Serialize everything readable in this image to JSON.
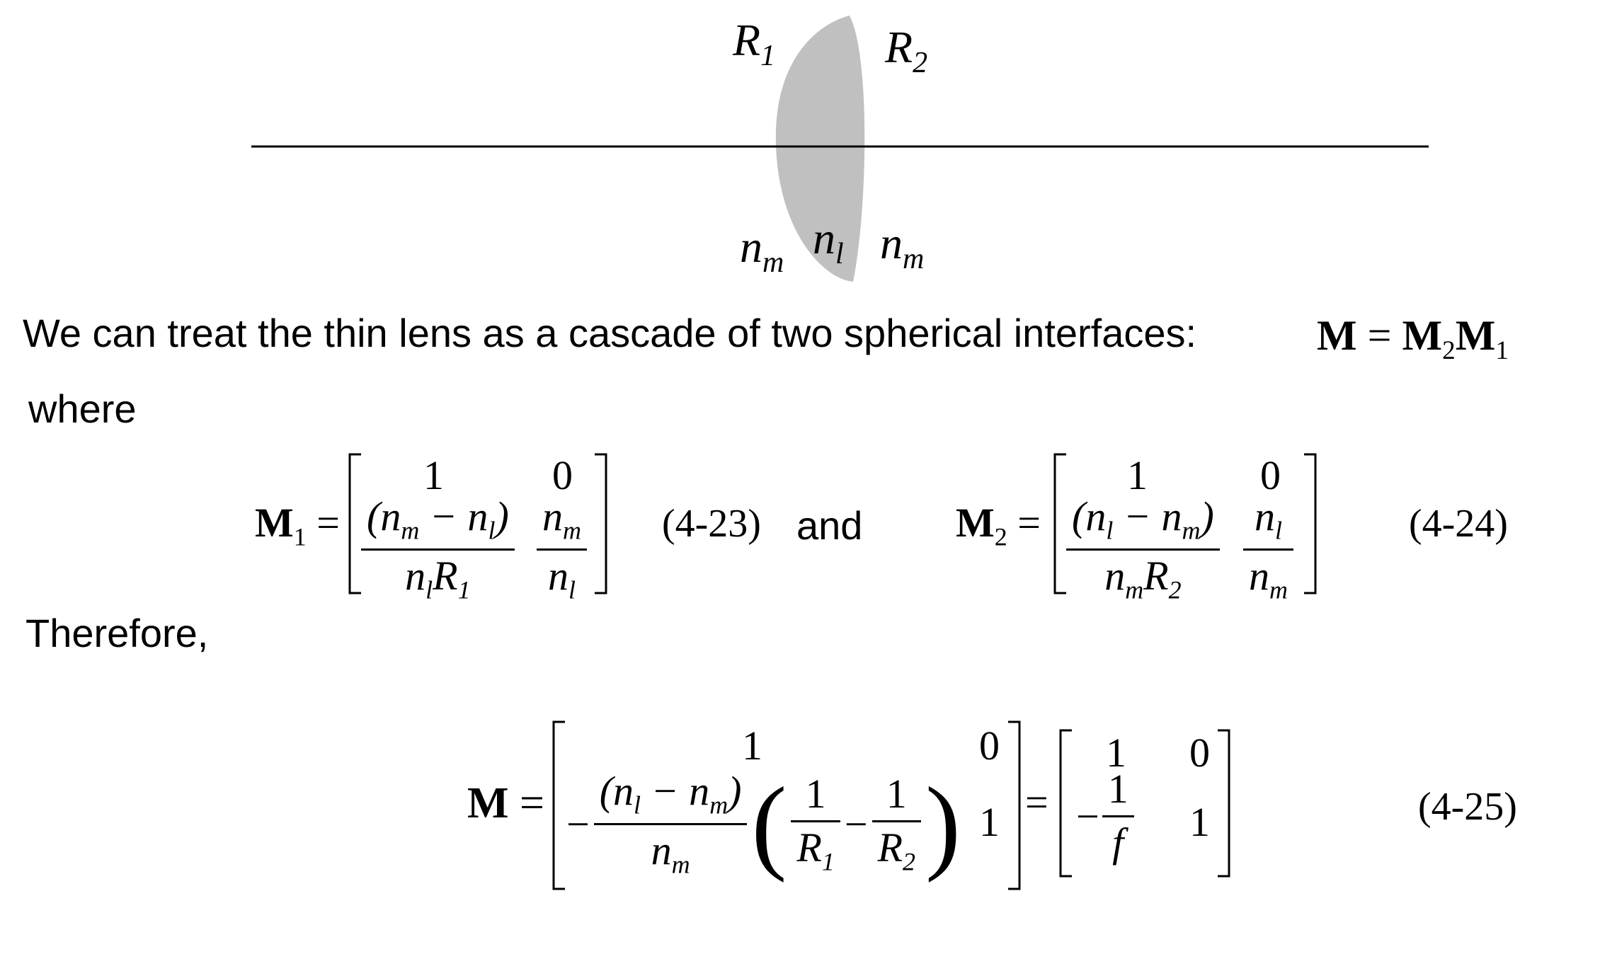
{
  "diagram": {
    "labels": {
      "R1": "R",
      "R1_sub": "1",
      "R2": "R",
      "R2_sub": "2",
      "nm_left": "n",
      "nm_left_sub": "m",
      "nl_mid": "n",
      "nl_mid_sub": "l",
      "nm_right": "n",
      "nm_right_sub": "m"
    },
    "colors": {
      "lens_fill": "#c0c0c0",
      "axis": "#000000"
    }
  },
  "text": {
    "intro": "We can treat the thin lens as a cascade of two spherical interfaces:",
    "where": "where",
    "therefore": "Therefore,",
    "and": "and"
  },
  "equations": {
    "cascade": {
      "lhs": "M",
      "rhs_a": "M",
      "rhs_a_sub": "2",
      "rhs_b": "M",
      "rhs_b_sub": "1"
    },
    "m1": {
      "name": "M",
      "name_sub": "1",
      "a11": "1",
      "a12": "0",
      "a21_num": "(n",
      "a21_num_sub1": "m",
      "a21_num_mid": " − n",
      "a21_num_sub2": "l",
      "a21_num_end": ")",
      "a21_den": "n",
      "a21_den_sub1": "l",
      "a21_den_R": "R",
      "a21_den_sub2": "1",
      "a22_num": "n",
      "a22_num_sub": "m",
      "a22_den": "n",
      "a22_den_sub": "l",
      "number": "(4-23)"
    },
    "m2": {
      "name": "M",
      "name_sub": "2",
      "a11": "1",
      "a12": "0",
      "a21_num": "(n",
      "a21_num_sub1": "l",
      "a21_num_mid": " − n",
      "a21_num_sub2": "m",
      "a21_num_end": ")",
      "a21_den": "n",
      "a21_den_sub1": "m",
      "a21_den_R": "R",
      "a21_den_sub2": "2",
      "a22_num": "n",
      "a22_num_sub": "l",
      "a22_den": "n",
      "a22_den_sub": "m",
      "number": "(4-24)"
    },
    "m": {
      "name": "M",
      "a11": "1",
      "a12": "0",
      "a22": "1",
      "minus": "−",
      "f_num": "(n",
      "f_num_sub1": "l",
      "f_num_mid": " − n",
      "f_num_sub2": "m",
      "f_num_end": ")",
      "f_den": "n",
      "f_den_sub": "m",
      "r1_num": "1",
      "r1_den": "R",
      "r1_den_sub": "1",
      "r2_num": "1",
      "r2_den": "R",
      "r2_den_sub": "2",
      "s_a11": "1",
      "s_a12": "0",
      "s_a22": "1",
      "s_num": "1",
      "s_den": "f",
      "number": "(4-25)"
    }
  }
}
